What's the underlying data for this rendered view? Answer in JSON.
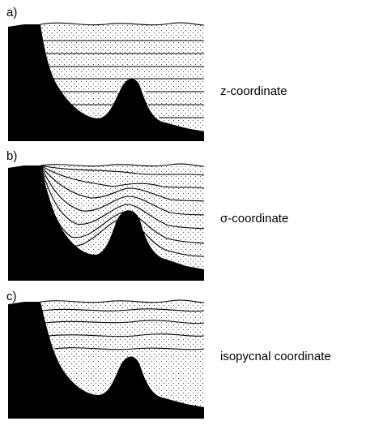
{
  "panels": [
    {
      "letter": "a)",
      "label": "z-coordinate",
      "coordinate": "z"
    },
    {
      "letter": "b)",
      "label": "σ-coordinate",
      "coordinate": "sigma"
    },
    {
      "letter": "c)",
      "label": "isopycnal coordinate",
      "coordinate": "isopycnal"
    }
  ],
  "colors": {
    "land": "#000000",
    "line": "#000000",
    "background": "#ffffff",
    "stipple": "#444444"
  }
}
